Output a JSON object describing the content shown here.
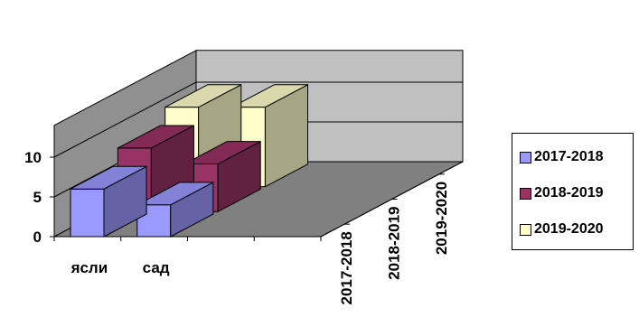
{
  "chart_data": {
    "type": "bar",
    "subtype": "3d-column",
    "categories": [
      "ясли",
      "сад"
    ],
    "series": [
      {
        "name": "2017-2018",
        "values": [
          6,
          4
        ],
        "color": "#9999ff"
      },
      {
        "name": "2018-2019",
        "values": [
          8,
          6
        ],
        "color": "#993366"
      },
      {
        "name": "2019-2020",
        "values": [
          10,
          10
        ],
        "color": "#ffffcc"
      }
    ],
    "yticks": [
      0,
      5,
      10
    ],
    "ylim": [
      0,
      14
    ],
    "depth_labels": [
      "2017-2018",
      "2018-2019",
      "2019-2020"
    ],
    "grid": true,
    "legend_position": "right",
    "wall_color": "#c0c0c0",
    "floor_color": "#808080"
  }
}
